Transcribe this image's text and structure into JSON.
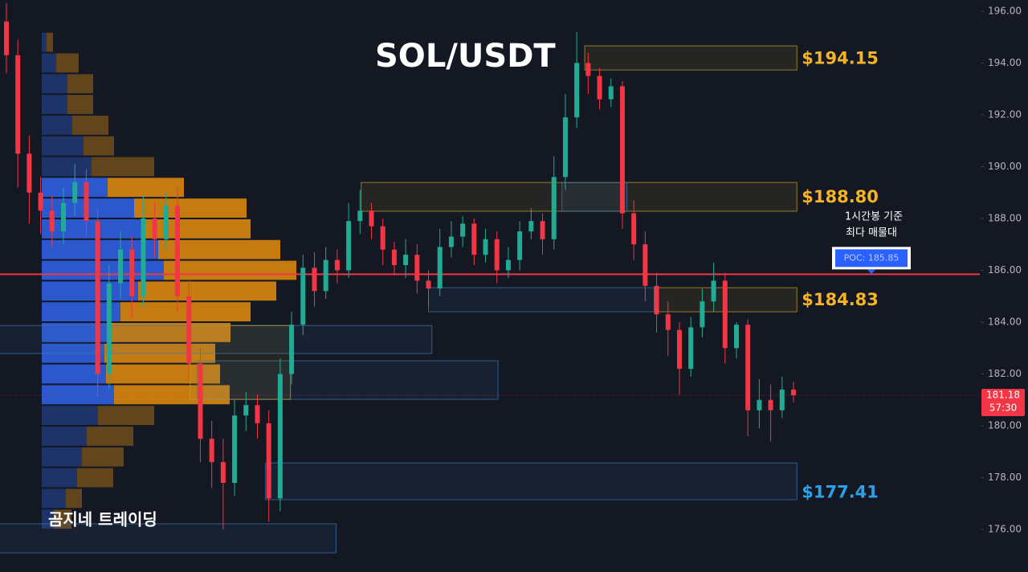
{
  "chart_data": {
    "type": "candlestick",
    "title": "SOL/USDT",
    "watermark": "곰지네 트레이딩",
    "ylim": [
      174.36,
      196.43
    ],
    "yticks": [
      {
        "value": 176,
        "label": "176.00"
      },
      {
        "value": 178,
        "label": "178.00"
      },
      {
        "value": 180,
        "label": "180.00"
      },
      {
        "value": 182,
        "label": "182.00"
      },
      {
        "value": 184,
        "label": "184.00"
      },
      {
        "value": 186,
        "label": "186.00"
      },
      {
        "value": 188,
        "label": "188.00"
      },
      {
        "value": 190,
        "label": "190.00"
      },
      {
        "value": 192,
        "label": "192.00"
      },
      {
        "value": 194,
        "label": "194.00"
      },
      {
        "value": 196,
        "label": "196.00"
      }
    ],
    "up_color": "#22ab94",
    "down_color": "#f23645",
    "opens": [
      195.6,
      194.3,
      190.5,
      189.0,
      188.3,
      187.5,
      188.6,
      189.4,
      187.9,
      182.0,
      185.5,
      186.8,
      185.0,
      188.0,
      187.2,
      188.5,
      185.0,
      182.4,
      179.5,
      178.6,
      177.8,
      180.4,
      180.8,
      180.1,
      177.2,
      182.0,
      183.9,
      186.1,
      185.2,
      186.4,
      186.0,
      187.9,
      188.3,
      187.7,
      186.8,
      186.2,
      186.6,
      185.6,
      185.3,
      186.9,
      187.3,
      187.8,
      186.6,
      187.2,
      186.0,
      186.4,
      187.5,
      187.9,
      187.2,
      189.6,
      191.9,
      194.0,
      193.5,
      192.6,
      193.1,
      188.2,
      187.0,
      185.4,
      184.3,
      183.7,
      182.2,
      183.8,
      184.8,
      185.6,
      183.0,
      183.9,
      180.6,
      181.0,
      180.6,
      181.4
    ],
    "highs": [
      196.3,
      194.9,
      191.2,
      189.6,
      188.9,
      189.2,
      190.1,
      189.9,
      188.4,
      186.2,
      187.5,
      187.3,
      188.9,
      188.6,
      189.0,
      189.2,
      185.6,
      183.0,
      180.2,
      179.5,
      181.0,
      181.3,
      181.2,
      180.6,
      182.6,
      184.4,
      186.6,
      186.7,
      186.9,
      186.8,
      188.6,
      189.1,
      188.6,
      188.0,
      187.1,
      187.2,
      187.0,
      186.0,
      187.6,
      187.9,
      188.1,
      188.0,
      187.6,
      187.5,
      186.9,
      187.9,
      188.4,
      188.2,
      190.4,
      192.8,
      195.2,
      194.4,
      193.8,
      193.4,
      193.3,
      188.7,
      187.5,
      185.9,
      184.8,
      184.0,
      184.2,
      185.3,
      186.3,
      185.9,
      184.0,
      184.1,
      181.8,
      181.6,
      181.9,
      181.7
    ],
    "lows": [
      193.6,
      189.2,
      187.8,
      187.4,
      186.9,
      187.0,
      188.1,
      187.3,
      181.1,
      181.4,
      184.9,
      184.2,
      184.6,
      186.5,
      186.8,
      184.4,
      181.7,
      178.6,
      177.6,
      176.0,
      177.3,
      179.8,
      179.5,
      176.3,
      176.7,
      181.6,
      183.5,
      184.6,
      184.9,
      185.5,
      185.7,
      187.4,
      187.2,
      186.2,
      185.8,
      185.7,
      185.1,
      184.6,
      185.0,
      186.5,
      186.9,
      186.2,
      186.3,
      185.5,
      185.7,
      186.0,
      187.2,
      186.6,
      186.8,
      189.1,
      191.5,
      192.8,
      192.2,
      192.3,
      187.6,
      186.4,
      184.8,
      183.6,
      182.7,
      181.2,
      181.9,
      183.4,
      184.4,
      182.4,
      182.6,
      179.6,
      179.9,
      179.4,
      180.3,
      180.9
    ],
    "closes": [
      194.3,
      190.5,
      189.0,
      188.3,
      187.5,
      188.6,
      189.4,
      187.9,
      182.0,
      185.5,
      186.8,
      185.0,
      188.0,
      187.2,
      188.5,
      185.0,
      182.4,
      179.5,
      178.6,
      177.8,
      180.4,
      180.8,
      180.1,
      177.2,
      182.0,
      183.9,
      186.1,
      185.2,
      186.4,
      186.0,
      187.9,
      188.3,
      187.7,
      186.8,
      186.2,
      186.6,
      185.6,
      185.3,
      186.9,
      187.3,
      187.8,
      186.6,
      187.2,
      186.0,
      186.4,
      187.5,
      187.9,
      187.2,
      189.6,
      191.9,
      194.0,
      193.5,
      192.6,
      193.1,
      188.2,
      187.0,
      185.4,
      184.3,
      183.7,
      182.2,
      183.8,
      184.8,
      185.6,
      183.0,
      183.9,
      180.6,
      181.0,
      180.6,
      181.4,
      181.18
    ],
    "volume_profile": {
      "bins": [
        176.0,
        176.8,
        177.6,
        178.4,
        179.2,
        180.0,
        180.8,
        181.6,
        182.4,
        183.2,
        184.0,
        184.8,
        185.6,
        186.4,
        187.2,
        188.0,
        188.8,
        189.6,
        190.4,
        191.2,
        192.0,
        192.8,
        193.6,
        194.4,
        195.2
      ],
      "buy": [
        15,
        30,
        44,
        50,
        56,
        70,
        90,
        80,
        78,
        85,
        98,
        120,
        152,
        145,
        125,
        115,
        82,
        62,
        52,
        38,
        32,
        32,
        18,
        6
      ],
      "sell": [
        22,
        20,
        45,
        52,
        58,
        70,
        144,
        142,
        138,
        150,
        162,
        172,
        165,
        152,
        135,
        140,
        95,
        78,
        38,
        45,
        32,
        32,
        28,
        8
      ],
      "value_area": [
        180.8,
        189.6
      ],
      "buy_color": "#2f5fe0",
      "sell_color": "#d9860f",
      "buy_color_outside": "#1f3670",
      "sell_color_outside": "#6a4a1d"
    },
    "zones": [
      {
        "high": 194.66,
        "low": 193.73,
        "start": 50.7,
        "end": 69.3,
        "color": "#c9a227",
        "level": {
          "value": 194.15,
          "label": "$194.15"
        }
      },
      {
        "high": 189.39,
        "low": 188.28,
        "start": 31.1,
        "end": 69.3,
        "color": "#c9a227",
        "level": {
          "value": 188.8,
          "label": "$188.80"
        }
      },
      {
        "high": 185.33,
        "low": 184.4,
        "start": 56.8,
        "end": 69.3,
        "color": "#c9a227",
        "level": {
          "value": 184.83,
          "label": "$184.83"
        }
      },
      {
        "high": 178.57,
        "low": 177.15,
        "start": 22.7,
        "end": 69.3,
        "color": "#3f78b5",
        "level": {
          "value": 177.41,
          "label": "$177.41"
        }
      },
      {
        "high": 185.33,
        "low": 184.4,
        "start": 37.0,
        "end": 56.8,
        "color": "#3f78b5"
      },
      {
        "high": 189.39,
        "low": 188.28,
        "start": 48.7,
        "end": 54.4,
        "color": "#3f78b5"
      },
      {
        "high": 183.87,
        "low": 182.79,
        "start": -0.6,
        "end": 37.3,
        "color": "#3f78b5"
      },
      {
        "high": 182.51,
        "low": 181.02,
        "start": 16.7,
        "end": 43.1,
        "color": "#3f78b5"
      },
      {
        "high": 176.22,
        "low": 175.1,
        "start": -0.6,
        "end": 28.9,
        "color": "#3f78b5"
      },
      {
        "high": 183.87,
        "low": 181.02,
        "start": 16.1,
        "end": 24.9,
        "color": "#c9a227"
      }
    ],
    "level_label_colors": {
      "yellow": "#f5b326",
      "blue": "#2aa1e8"
    },
    "poc": {
      "value": 185.85,
      "label": "POC: 185.85",
      "color": "#f23645"
    },
    "annotation": [
      "1시간봉 기준",
      "최다 매물대"
    ],
    "last_price": {
      "value": 181.18,
      "label": "181.18",
      "countdown": "57:30",
      "color": "#f23645"
    }
  }
}
